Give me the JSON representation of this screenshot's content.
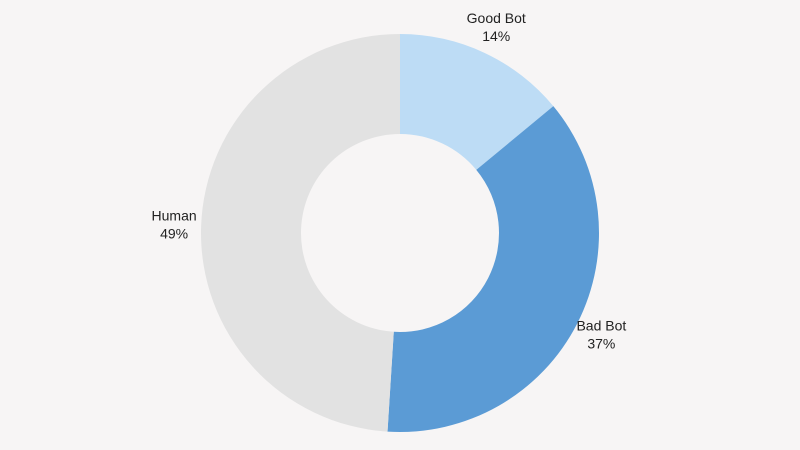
{
  "chart_data": {
    "type": "donut",
    "categories": [
      "Good Bot",
      "Bad Bot",
      "Human"
    ],
    "values": [
      14,
      37,
      49
    ],
    "value_labels": [
      "14%",
      "37%",
      "49%"
    ],
    "colors": [
      "#bddcf5",
      "#5b9bd5",
      "#e2e2e2"
    ]
  }
}
